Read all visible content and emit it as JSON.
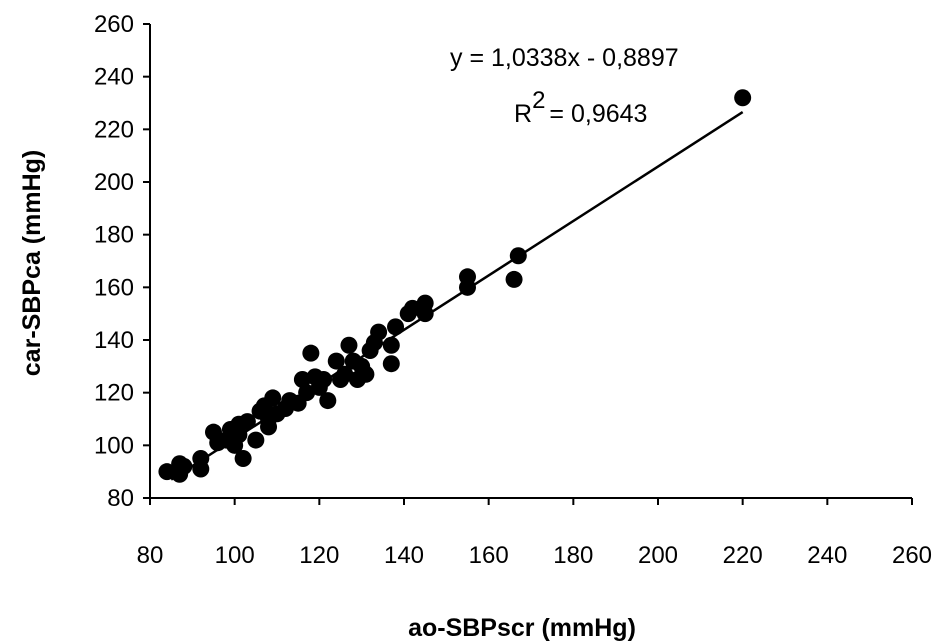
{
  "chart_data": {
    "type": "scatter",
    "title": "",
    "xlabel": "ao-SBPscr (mmHg)",
    "ylabel": "car-SBPca (mmHg)",
    "xlim": [
      80,
      260
    ],
    "ylim": [
      80,
      260
    ],
    "x_ticks": [
      "80",
      "100",
      "120",
      "140",
      "160",
      "180",
      "200",
      "220",
      "240",
      "260"
    ],
    "y_ticks": [
      "80",
      "100",
      "120",
      "140",
      "160",
      "180",
      "200",
      "220",
      "240",
      "260"
    ],
    "grid": false,
    "legend": "none",
    "marker_color": "#000000",
    "trendline": {
      "slope": 1.0338,
      "intercept": -0.8897,
      "x_range": [
        85,
        220
      ],
      "equation_label": "y = 1,0338x - 0,8897",
      "r2_prefix": "R",
      "r2_superscript": "2",
      "r2_value": "= 0,9643"
    },
    "points": [
      {
        "x": 84,
        "y": 90
      },
      {
        "x": 87,
        "y": 89
      },
      {
        "x": 87,
        "y": 93
      },
      {
        "x": 88,
        "y": 92
      },
      {
        "x": 92,
        "y": 91
      },
      {
        "x": 92,
        "y": 95
      },
      {
        "x": 95,
        "y": 105
      },
      {
        "x": 96,
        "y": 101
      },
      {
        "x": 98,
        "y": 102
      },
      {
        "x": 99,
        "y": 106
      },
      {
        "x": 100,
        "y": 100
      },
      {
        "x": 101,
        "y": 108
      },
      {
        "x": 101,
        "y": 104
      },
      {
        "x": 102,
        "y": 95
      },
      {
        "x": 103,
        "y": 109
      },
      {
        "x": 105,
        "y": 102
      },
      {
        "x": 106,
        "y": 113
      },
      {
        "x": 107,
        "y": 115
      },
      {
        "x": 108,
        "y": 110
      },
      {
        "x": 108,
        "y": 107
      },
      {
        "x": 109,
        "y": 118
      },
      {
        "x": 110,
        "y": 112
      },
      {
        "x": 112,
        "y": 114
      },
      {
        "x": 113,
        "y": 117
      },
      {
        "x": 115,
        "y": 116
      },
      {
        "x": 116,
        "y": 125
      },
      {
        "x": 117,
        "y": 120
      },
      {
        "x": 118,
        "y": 135
      },
      {
        "x": 119,
        "y": 126
      },
      {
        "x": 120,
        "y": 122
      },
      {
        "x": 121,
        "y": 125
      },
      {
        "x": 122,
        "y": 117
      },
      {
        "x": 124,
        "y": 132
      },
      {
        "x": 125,
        "y": 125
      },
      {
        "x": 126,
        "y": 127
      },
      {
        "x": 127,
        "y": 138
      },
      {
        "x": 128,
        "y": 132
      },
      {
        "x": 129,
        "y": 125
      },
      {
        "x": 130,
        "y": 130
      },
      {
        "x": 131,
        "y": 127
      },
      {
        "x": 132,
        "y": 136
      },
      {
        "x": 133,
        "y": 139
      },
      {
        "x": 134,
        "y": 143
      },
      {
        "x": 137,
        "y": 138
      },
      {
        "x": 137,
        "y": 131
      },
      {
        "x": 138,
        "y": 145
      },
      {
        "x": 141,
        "y": 150
      },
      {
        "x": 142,
        "y": 152
      },
      {
        "x": 145,
        "y": 154
      },
      {
        "x": 145,
        "y": 150
      },
      {
        "x": 155,
        "y": 164
      },
      {
        "x": 155,
        "y": 160
      },
      {
        "x": 166,
        "y": 163
      },
      {
        "x": 167,
        "y": 172
      },
      {
        "x": 220,
        "y": 232
      }
    ]
  }
}
